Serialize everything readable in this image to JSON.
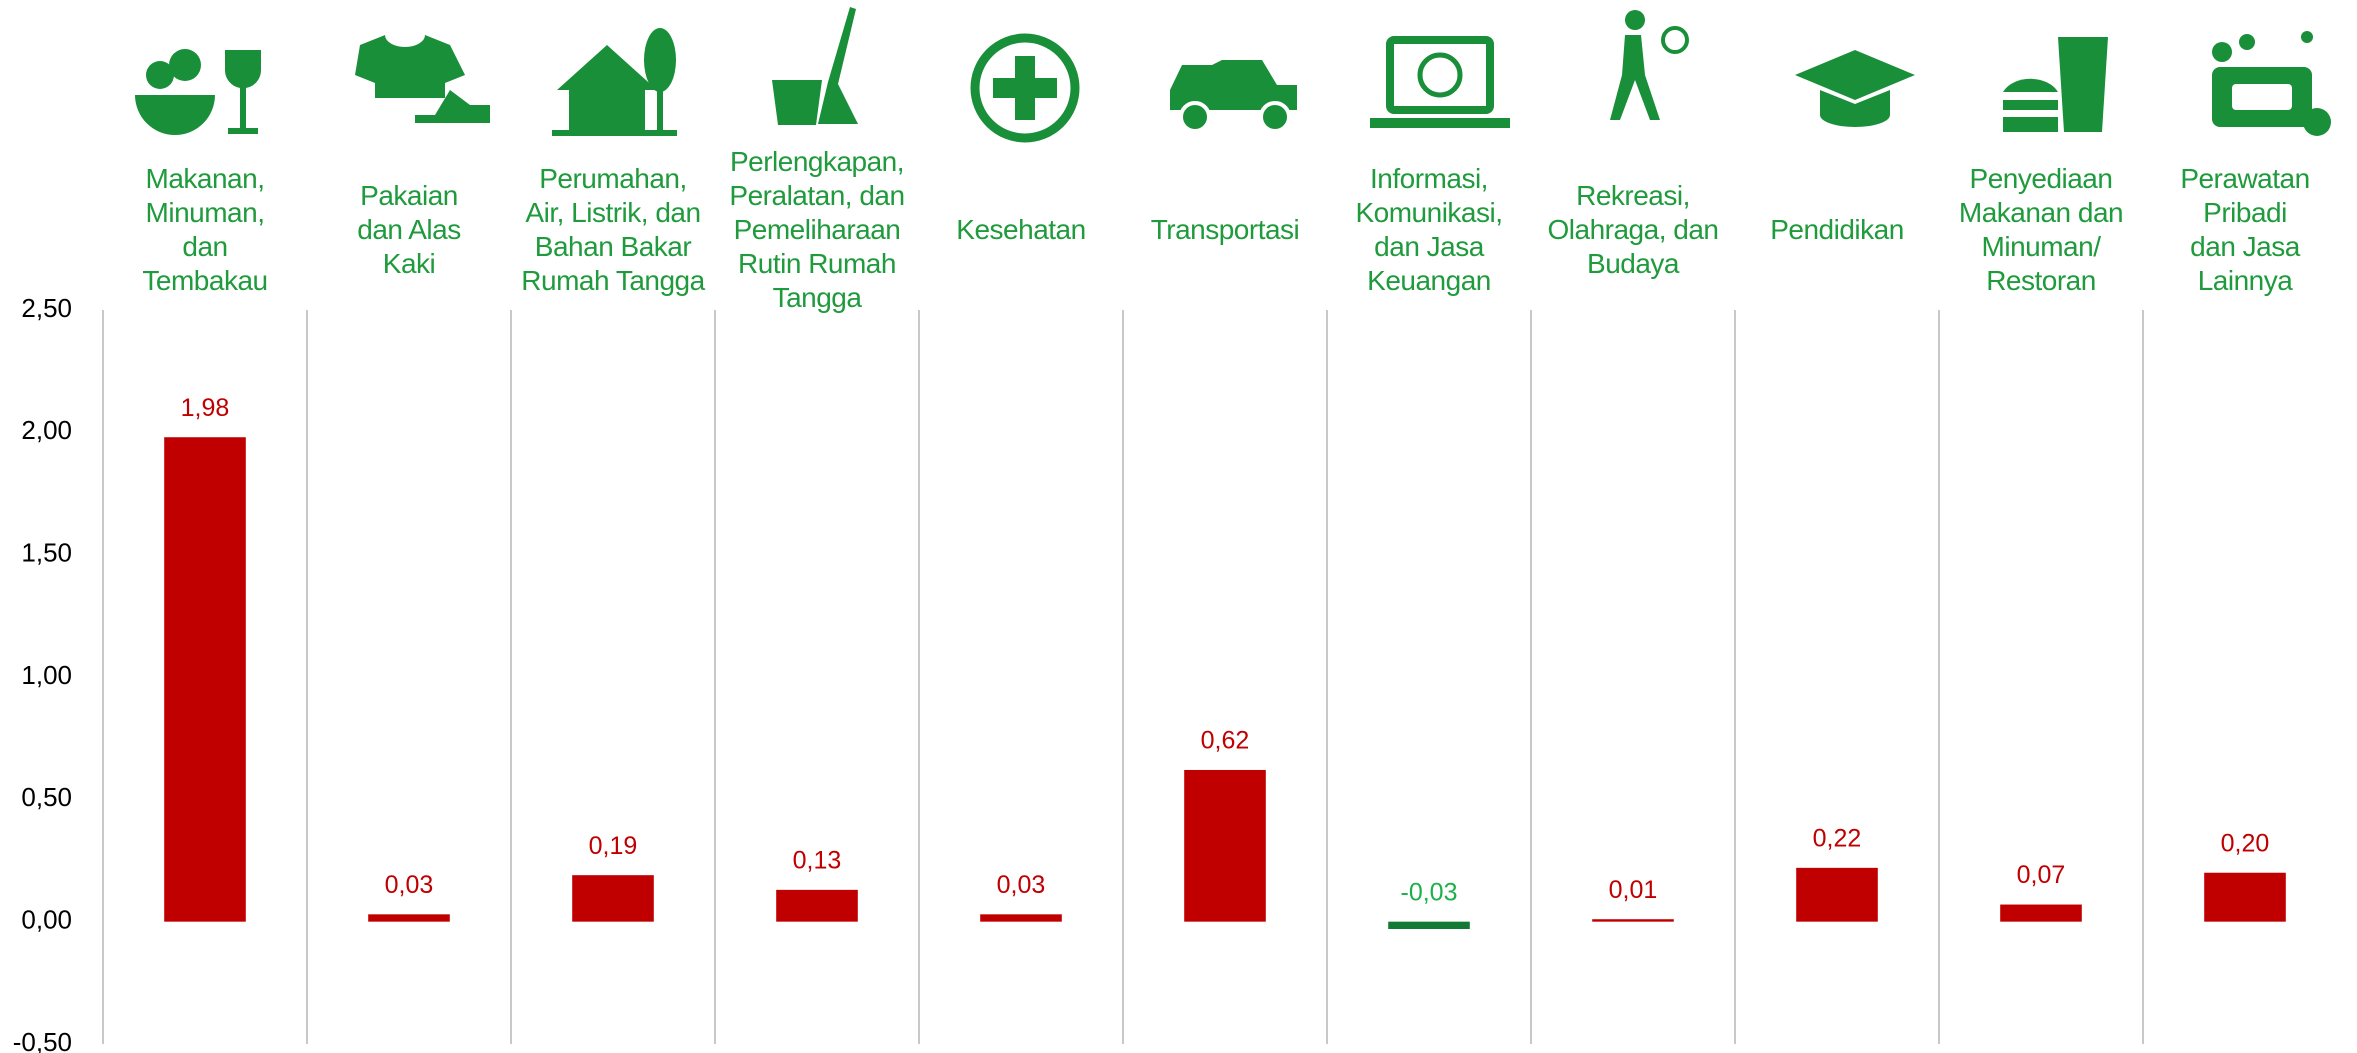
{
  "chart_data": {
    "type": "bar",
    "categories": [
      "Makanan, Minuman, dan Tembakau",
      "Pakaian dan Alas Kaki",
      "Perumahan, Air, Listrik, dan Bahan Bakar Rumah Tangga",
      "Perlengkapan, Peralatan, dan Pemeliharaan Rutin Rumah Tangga",
      "Kesehatan",
      "Transportasi",
      "Informasi, Komunikasi, dan Jasa Keuangan",
      "Rekreasi, Olahraga, dan Budaya",
      "Pendidikan",
      "Penyediaan Makanan dan Minuman/ Restoran",
      "Perawatan Pribadi dan Jasa Lainnya"
    ],
    "values": [
      1.98,
      0.03,
      0.19,
      0.13,
      0.03,
      0.62,
      -0.03,
      0.01,
      0.22,
      0.07,
      0.2
    ],
    "value_labels": [
      "1,98",
      "0,03",
      "0,19",
      "0,13",
      "0,03",
      "0,62",
      "-0,03",
      "0,01",
      "0,22",
      "0,07",
      "0,20"
    ],
    "color": "#c00000",
    "negative_color": "#137a36",
    "label_color": "#c00000",
    "negative_label_color": "#1db04a",
    "category_color": "#1f9a3c",
    "ylim": [
      -0.5,
      2.5
    ],
    "yticks": [
      {
        "value": -0.5,
        "label": "-0,50"
      },
      {
        "value": 0,
        "label": "0,00"
      },
      {
        "value": 0.5,
        "label": "0,50"
      },
      {
        "value": 1,
        "label": "1,00"
      },
      {
        "value": 1.5,
        "label": "1,50"
      },
      {
        "value": 2,
        "label": "2,00"
      },
      {
        "value": 2.5,
        "label": "2,50"
      }
    ],
    "grid": false
  }
}
